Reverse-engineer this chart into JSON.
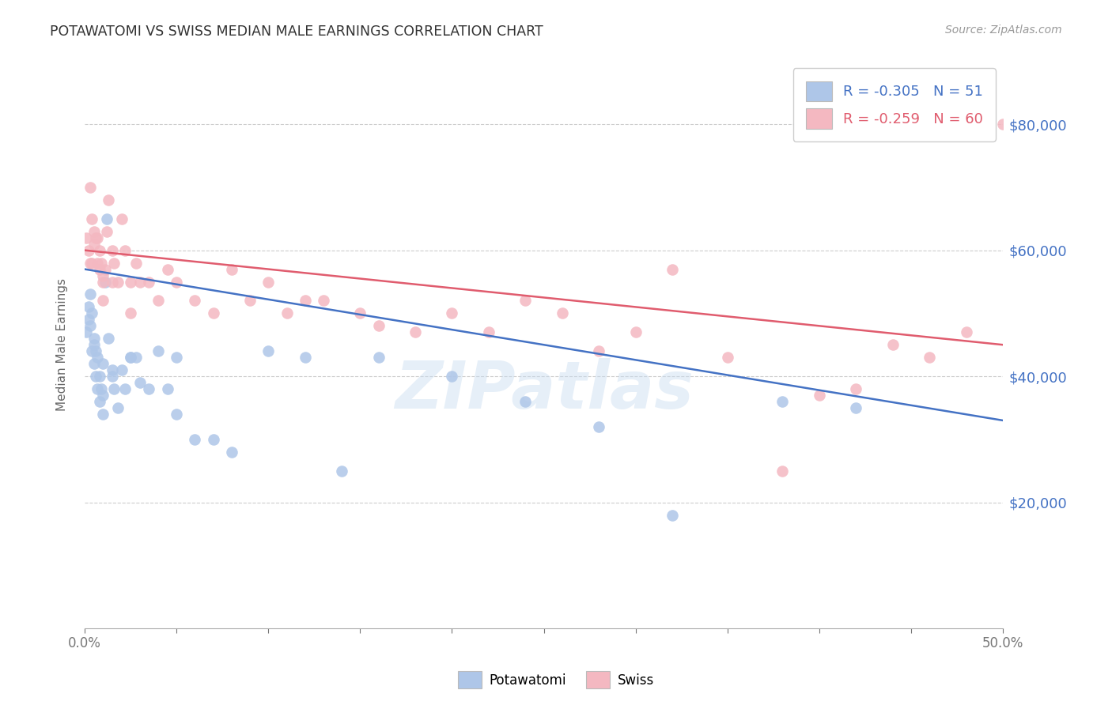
{
  "title": "POTAWATOMI VS SWISS MEDIAN MALE EARNINGS CORRELATION CHART",
  "source": "Source: ZipAtlas.com",
  "ylabel": "Median Male Earnings",
  "xlim": [
    0.0,
    0.5
  ],
  "ylim": [
    0,
    90000
  ],
  "legend_label_potawatomi": "Potawatomi",
  "legend_label_swiss": "Swiss",
  "watermark": "ZIPatlas",
  "potawatomi_color": "#aec6e8",
  "swiss_color": "#f4b8c1",
  "potawatomi_line_color": "#4472c4",
  "swiss_line_color": "#e05c6e",
  "potawatomi_R": -0.305,
  "potawatomi_N": 51,
  "swiss_R": -0.259,
  "swiss_N": 60,
  "potawatomi_x": [
    0.001,
    0.002,
    0.002,
    0.003,
    0.003,
    0.004,
    0.004,
    0.005,
    0.005,
    0.006,
    0.006,
    0.007,
    0.007,
    0.008,
    0.008,
    0.009,
    0.01,
    0.01,
    0.011,
    0.012,
    0.013,
    0.015,
    0.016,
    0.018,
    0.02,
    0.022,
    0.025,
    0.028,
    0.03,
    0.035,
    0.04,
    0.045,
    0.05,
    0.06,
    0.07,
    0.08,
    0.1,
    0.12,
    0.14,
    0.16,
    0.2,
    0.24,
    0.28,
    0.32,
    0.38,
    0.42,
    0.05,
    0.025,
    0.015,
    0.01,
    0.005
  ],
  "potawatomi_y": [
    47000,
    49000,
    51000,
    53000,
    48000,
    50000,
    44000,
    46000,
    42000,
    44000,
    40000,
    43000,
    38000,
    40000,
    36000,
    38000,
    34000,
    37000,
    55000,
    65000,
    46000,
    41000,
    38000,
    35000,
    41000,
    38000,
    43000,
    43000,
    39000,
    38000,
    44000,
    38000,
    34000,
    30000,
    30000,
    28000,
    44000,
    43000,
    25000,
    43000,
    40000,
    36000,
    32000,
    18000,
    36000,
    35000,
    43000,
    43000,
    40000,
    42000,
    45000
  ],
  "swiss_x": [
    0.001,
    0.002,
    0.003,
    0.003,
    0.004,
    0.005,
    0.005,
    0.006,
    0.007,
    0.008,
    0.008,
    0.009,
    0.01,
    0.01,
    0.011,
    0.012,
    0.013,
    0.015,
    0.016,
    0.018,
    0.02,
    0.022,
    0.025,
    0.028,
    0.03,
    0.035,
    0.04,
    0.045,
    0.05,
    0.06,
    0.07,
    0.08,
    0.09,
    0.1,
    0.11,
    0.12,
    0.13,
    0.15,
    0.16,
    0.18,
    0.2,
    0.22,
    0.24,
    0.26,
    0.28,
    0.3,
    0.32,
    0.35,
    0.38,
    0.4,
    0.42,
    0.44,
    0.46,
    0.48,
    0.5,
    0.025,
    0.015,
    0.01,
    0.007,
    0.004
  ],
  "swiss_y": [
    62000,
    60000,
    58000,
    70000,
    65000,
    63000,
    61000,
    62000,
    58000,
    60000,
    57000,
    58000,
    56000,
    55000,
    57000,
    63000,
    68000,
    60000,
    58000,
    55000,
    65000,
    60000,
    55000,
    58000,
    55000,
    55000,
    52000,
    57000,
    55000,
    52000,
    50000,
    57000,
    52000,
    55000,
    50000,
    52000,
    52000,
    50000,
    48000,
    47000,
    50000,
    47000,
    52000,
    50000,
    44000,
    47000,
    57000,
    43000,
    25000,
    37000,
    38000,
    45000,
    43000,
    47000,
    80000,
    50000,
    55000,
    52000,
    62000,
    58000
  ]
}
